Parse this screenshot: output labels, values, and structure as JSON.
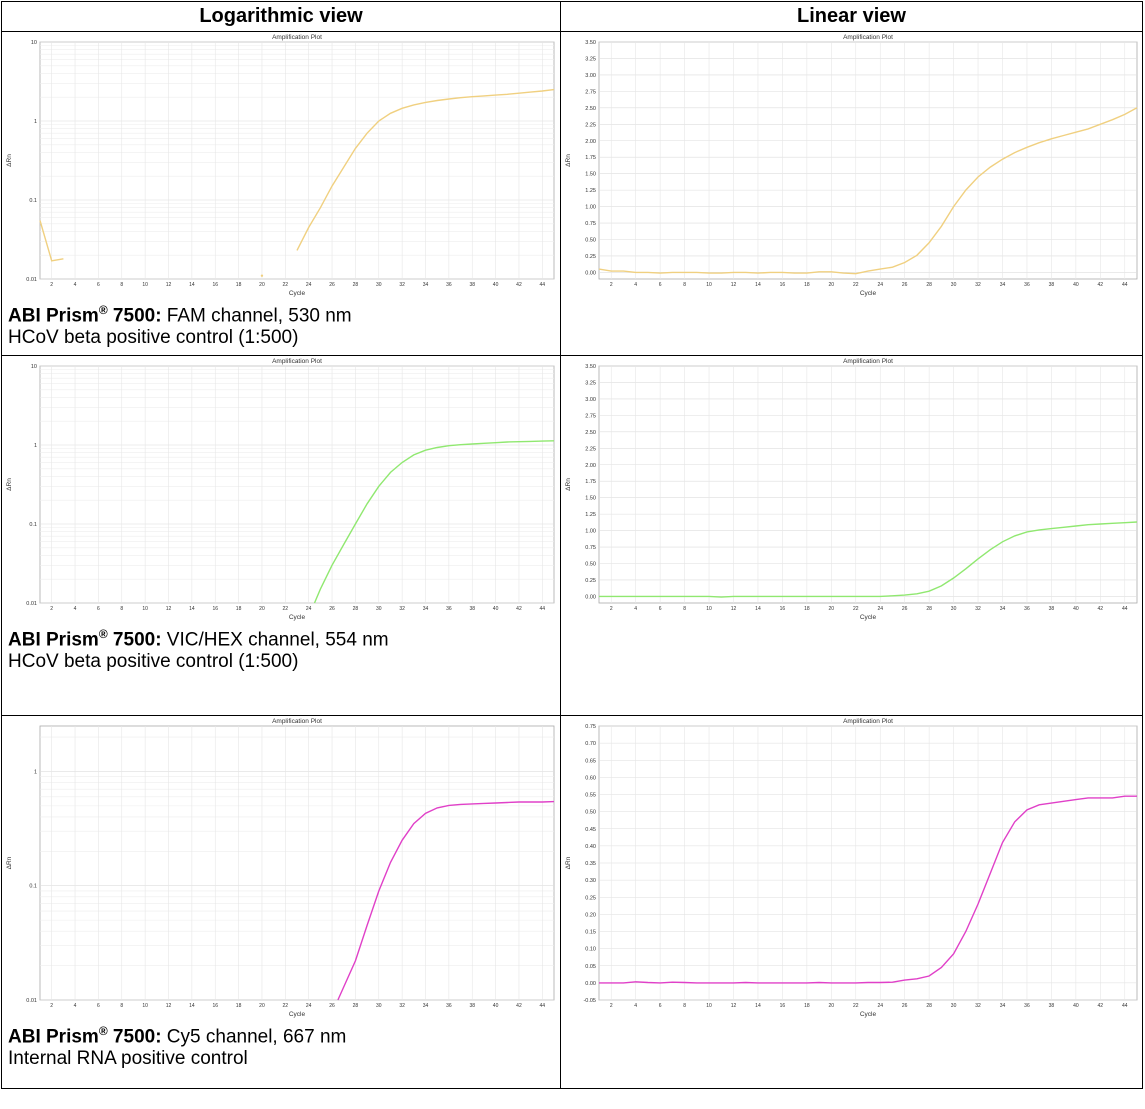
{
  "header": {
    "col_log": "Logarithmic view",
    "col_lin": "Linear view"
  },
  "captions": [
    {
      "instrument": "ABI Prism",
      "reg": "®",
      "model": " 7500:",
      "channel": " FAM channel, 530 nm",
      "sample": "HCoV beta positive control (1:500)"
    },
    {
      "instrument": "ABI Prism",
      "reg": "®",
      "model": " 7500:",
      "channel": " VIC/HEX channel, 554 nm",
      "sample": "HCoV beta positive control (1:500)"
    },
    {
      "instrument": "ABI Prism",
      "reg": "®",
      "model": " 7500:",
      "channel": " Cy5 channel, 667 nm",
      "sample": "Internal RNA positive control"
    }
  ],
  "chart_data": [
    {
      "id": "fam-log",
      "type": "line",
      "title": "Amplification Plot",
      "xlabel": "Cycle",
      "ylabel": "ΔRn",
      "yscale": "log",
      "ylim": [
        0.01,
        10
      ],
      "yticks": [
        "0.01",
        "0.1",
        "1",
        "10"
      ],
      "xlim": [
        1,
        45
      ],
      "xticks": [
        "2",
        "4",
        "6",
        "8",
        "10",
        "12",
        "14",
        "16",
        "18",
        "20",
        "22",
        "24",
        "26",
        "28",
        "30",
        "32",
        "34",
        "36",
        "38",
        "40",
        "42",
        "44"
      ],
      "grid": true,
      "color": "#f0d080",
      "segments": [
        {
          "x": [
            1,
            2,
            3
          ],
          "y": [
            0.055,
            0.017,
            0.018
          ]
        },
        {
          "x": [
            20
          ],
          "y": [
            0.011
          ]
        },
        {
          "x": [
            23,
            24,
            25,
            26,
            27,
            28,
            29,
            30,
            31,
            32,
            33,
            34,
            35,
            36,
            37,
            38,
            39,
            40,
            41,
            42,
            43,
            44,
            45
          ],
          "y": [
            0.023,
            0.045,
            0.08,
            0.15,
            0.26,
            0.45,
            0.7,
            1.0,
            1.25,
            1.45,
            1.6,
            1.72,
            1.82,
            1.9,
            1.97,
            2.03,
            2.08,
            2.13,
            2.18,
            2.25,
            2.32,
            2.4,
            2.5
          ]
        }
      ]
    },
    {
      "id": "fam-lin",
      "type": "line",
      "title": "Amplification Plot",
      "xlabel": "Cycle",
      "ylabel": "ΔRn",
      "yscale": "linear",
      "ylim": [
        -0.1,
        3.5
      ],
      "xlim": [
        1,
        45
      ],
      "yticks": [
        "0.00",
        "0.25",
        "0.50",
        "0.75",
        "1.00",
        "1.25",
        "1.50",
        "1.75",
        "2.00",
        "2.25",
        "2.50",
        "2.75",
        "3.00",
        "3.25",
        "3.50"
      ],
      "xticks": [
        "2",
        "4",
        "6",
        "8",
        "10",
        "12",
        "14",
        "16",
        "18",
        "20",
        "22",
        "24",
        "26",
        "28",
        "30",
        "32",
        "34",
        "36",
        "38",
        "40",
        "42",
        "44"
      ],
      "grid": true,
      "color": "#f0d080",
      "segments": [
        {
          "x": [
            1,
            2,
            3,
            4,
            5,
            6,
            7,
            8,
            9,
            10,
            11,
            12,
            13,
            14,
            15,
            16,
            17,
            18,
            19,
            20,
            21,
            22,
            23,
            24,
            25,
            26,
            27,
            28,
            29,
            30,
            31,
            32,
            33,
            34,
            35,
            36,
            37,
            38,
            39,
            40,
            41,
            42,
            43,
            44,
            45
          ],
          "y": [
            0.05,
            0.02,
            0.02,
            0.0,
            0.0,
            -0.01,
            0.0,
            0.0,
            0.0,
            -0.01,
            -0.01,
            0.0,
            0.0,
            -0.01,
            0.0,
            0.0,
            -0.01,
            -0.01,
            0.01,
            0.01,
            -0.01,
            -0.02,
            0.02,
            0.05,
            0.08,
            0.15,
            0.26,
            0.45,
            0.7,
            1.0,
            1.25,
            1.45,
            1.6,
            1.72,
            1.82,
            1.9,
            1.97,
            2.03,
            2.08,
            2.13,
            2.18,
            2.25,
            2.32,
            2.4,
            2.5
          ]
        }
      ]
    },
    {
      "id": "vic-log",
      "type": "line",
      "title": "Amplification Plot",
      "xlabel": "Cycle",
      "ylabel": "ΔRn",
      "yscale": "log",
      "ylim": [
        0.01,
        10
      ],
      "yticks": [
        "0.01",
        "0.1",
        "1",
        "10"
      ],
      "xlim": [
        1,
        45
      ],
      "xticks": [
        "2",
        "4",
        "6",
        "8",
        "10",
        "12",
        "14",
        "16",
        "18",
        "20",
        "22",
        "24",
        "26",
        "28",
        "30",
        "32",
        "34",
        "36",
        "38",
        "40",
        "42",
        "44"
      ],
      "grid": true,
      "color": "#90e870",
      "segments": [
        {
          "x": [
            24.5,
            25,
            26,
            27,
            28,
            29,
            30,
            31,
            32,
            33,
            34,
            35,
            36,
            37,
            38,
            39,
            40,
            41,
            42,
            43,
            44,
            45
          ],
          "y": [
            0.01,
            0.015,
            0.03,
            0.055,
            0.1,
            0.18,
            0.3,
            0.45,
            0.6,
            0.75,
            0.86,
            0.93,
            0.98,
            1.01,
            1.03,
            1.05,
            1.07,
            1.09,
            1.1,
            1.11,
            1.12,
            1.13
          ]
        }
      ]
    },
    {
      "id": "vic-lin",
      "type": "line",
      "title": "Amplification Plot",
      "xlabel": "Cycle",
      "ylabel": "ΔRn",
      "yscale": "linear",
      "ylim": [
        -0.1,
        3.5
      ],
      "xlim": [
        1,
        45
      ],
      "yticks": [
        "0.00",
        "0.25",
        "0.50",
        "0.75",
        "1.00",
        "1.25",
        "1.50",
        "1.75",
        "2.00",
        "2.25",
        "2.50",
        "2.75",
        "3.00",
        "3.25",
        "3.50"
      ],
      "xticks": [
        "2",
        "4",
        "6",
        "8",
        "10",
        "12",
        "14",
        "16",
        "18",
        "20",
        "22",
        "24",
        "26",
        "28",
        "30",
        "32",
        "34",
        "36",
        "38",
        "40",
        "42",
        "44"
      ],
      "grid": true,
      "color": "#90e870",
      "segments": [
        {
          "x": [
            1,
            2,
            3,
            4,
            5,
            6,
            7,
            8,
            9,
            10,
            11,
            12,
            13,
            14,
            15,
            16,
            17,
            18,
            19,
            20,
            21,
            22,
            23,
            24,
            25,
            26,
            27,
            28,
            29,
            30,
            31,
            32,
            33,
            34,
            35,
            36,
            37,
            38,
            39,
            40,
            41,
            42,
            43,
            44,
            45
          ],
          "y": [
            0.0,
            0.0,
            0.0,
            0.0,
            0.0,
            0.0,
            0.0,
            0.0,
            0.0,
            0.0,
            -0.01,
            0.0,
            0.0,
            0.0,
            0.0,
            0.0,
            0.0,
            0.0,
            0.0,
            0.0,
            0.0,
            0.0,
            0.0,
            0.0,
            0.01,
            0.02,
            0.04,
            0.08,
            0.16,
            0.28,
            0.42,
            0.57,
            0.71,
            0.83,
            0.92,
            0.98,
            1.01,
            1.03,
            1.05,
            1.07,
            1.09,
            1.1,
            1.11,
            1.12,
            1.13
          ]
        }
      ]
    },
    {
      "id": "cy5-log",
      "type": "line",
      "title": "Amplification Plot",
      "xlabel": "Cycle",
      "ylabel": "ΔRn",
      "yscale": "log",
      "ylim": [
        0.01,
        2.5
      ],
      "yticks": [
        "0.01",
        "0.1",
        "1"
      ],
      "xlim": [
        1,
        45
      ],
      "xticks": [
        "2",
        "4",
        "6",
        "8",
        "10",
        "12",
        "14",
        "16",
        "18",
        "20",
        "22",
        "24",
        "26",
        "28",
        "30",
        "32",
        "34",
        "36",
        "38",
        "40",
        "42",
        "44"
      ],
      "grid": true,
      "color": "#e040c8",
      "segments": [
        {
          "x": [
            26.5,
            27,
            28,
            29,
            30,
            31,
            32,
            33,
            34,
            35,
            36,
            37,
            38,
            39,
            40,
            41,
            42,
            43,
            44,
            45
          ],
          "y": [
            0.01,
            0.013,
            0.022,
            0.045,
            0.09,
            0.16,
            0.25,
            0.35,
            0.43,
            0.48,
            0.505,
            0.515,
            0.52,
            0.525,
            0.53,
            0.535,
            0.54,
            0.54,
            0.54,
            0.545
          ]
        }
      ]
    },
    {
      "id": "cy5-lin",
      "type": "line",
      "title": "Amplification Plot",
      "xlabel": "Cycle",
      "ylabel": "ΔRn",
      "yscale": "linear",
      "ylim": [
        -0.05,
        0.75
      ],
      "xlim": [
        1,
        45
      ],
      "yticks": [
        "-0.05",
        "0.00",
        "0.05",
        "0.10",
        "0.15",
        "0.20",
        "0.25",
        "0.30",
        "0.35",
        "0.40",
        "0.45",
        "0.50",
        "0.55",
        "0.60",
        "0.65",
        "0.70",
        "0.75"
      ],
      "xticks": [
        "2",
        "4",
        "6",
        "8",
        "10",
        "12",
        "14",
        "16",
        "18",
        "20",
        "22",
        "24",
        "26",
        "28",
        "30",
        "32",
        "34",
        "36",
        "38",
        "40",
        "42",
        "44"
      ],
      "grid": true,
      "color": "#e040c8",
      "segments": [
        {
          "x": [
            1,
            2,
            3,
            4,
            5,
            6,
            7,
            8,
            9,
            10,
            11,
            12,
            13,
            14,
            15,
            16,
            17,
            18,
            19,
            20,
            21,
            22,
            23,
            24,
            25,
            26,
            27,
            28,
            29,
            30,
            31,
            32,
            33,
            34,
            35,
            36,
            37,
            38,
            39,
            40,
            41,
            42,
            43,
            44,
            45
          ],
          "y": [
            0.0,
            0.0,
            0.0,
            0.003,
            0.001,
            0.0,
            0.002,
            0.001,
            0.0,
            0.0,
            0.0,
            0.0,
            0.001,
            0.0,
            0.0,
            0.0,
            0.0,
            0.0,
            0.001,
            0.0,
            0.0,
            0.0,
            0.001,
            0.001,
            0.002,
            0.008,
            0.012,
            0.02,
            0.045,
            0.085,
            0.15,
            0.23,
            0.32,
            0.41,
            0.47,
            0.505,
            0.52,
            0.525,
            0.53,
            0.535,
            0.54,
            0.54,
            0.54,
            0.545,
            0.545
          ]
        }
      ]
    }
  ]
}
